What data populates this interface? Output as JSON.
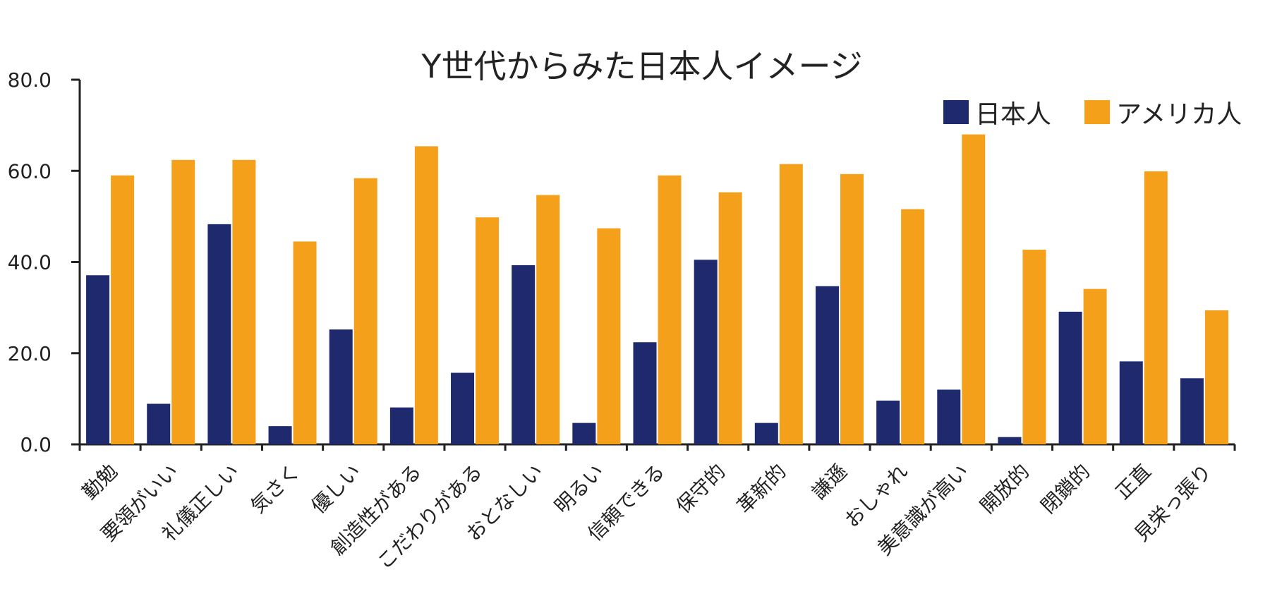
{
  "chart_data": {
    "type": "bar",
    "title": "Y世代からみた日本人イメージ",
    "xlabel": "",
    "ylabel": "",
    "ylim": [
      0,
      80
    ],
    "yticks": [
      "0.0",
      "20.0",
      "40.0",
      "60.0",
      "80.0"
    ],
    "ytick_values": [
      0,
      20,
      40,
      60,
      80
    ],
    "legend_position": "top-right",
    "categories": [
      "勤勉",
      "要領がいい",
      "礼儀正しい",
      "気さく",
      "優しい",
      "創造性がある",
      "こだわりがある",
      "おとなしい",
      "明るい",
      "信頼できる",
      "保守的",
      "革新的",
      "謙遜",
      "おしゃれ",
      "美意識が高い",
      "開放的",
      "閉鎖的",
      "正直",
      "見栄っ張り"
    ],
    "series": [
      {
        "name": "日本人",
        "color": "#1f2a6e",
        "values": [
          37.1,
          8.9,
          48.3,
          4.0,
          25.2,
          8.1,
          15.7,
          39.3,
          4.7,
          22.4,
          40.5,
          4.7,
          34.7,
          9.6,
          12.0,
          1.6,
          29.1,
          18.2,
          14.5
        ]
      },
      {
        "name": "アメリカ人",
        "color": "#f5a01a",
        "values": [
          59.0,
          62.4,
          62.4,
          44.5,
          58.4,
          65.4,
          49.8,
          54.7,
          47.4,
          59.0,
          55.3,
          61.5,
          59.3,
          51.6,
          68.0,
          42.7,
          34.1,
          59.9,
          29.4
        ]
      }
    ]
  }
}
